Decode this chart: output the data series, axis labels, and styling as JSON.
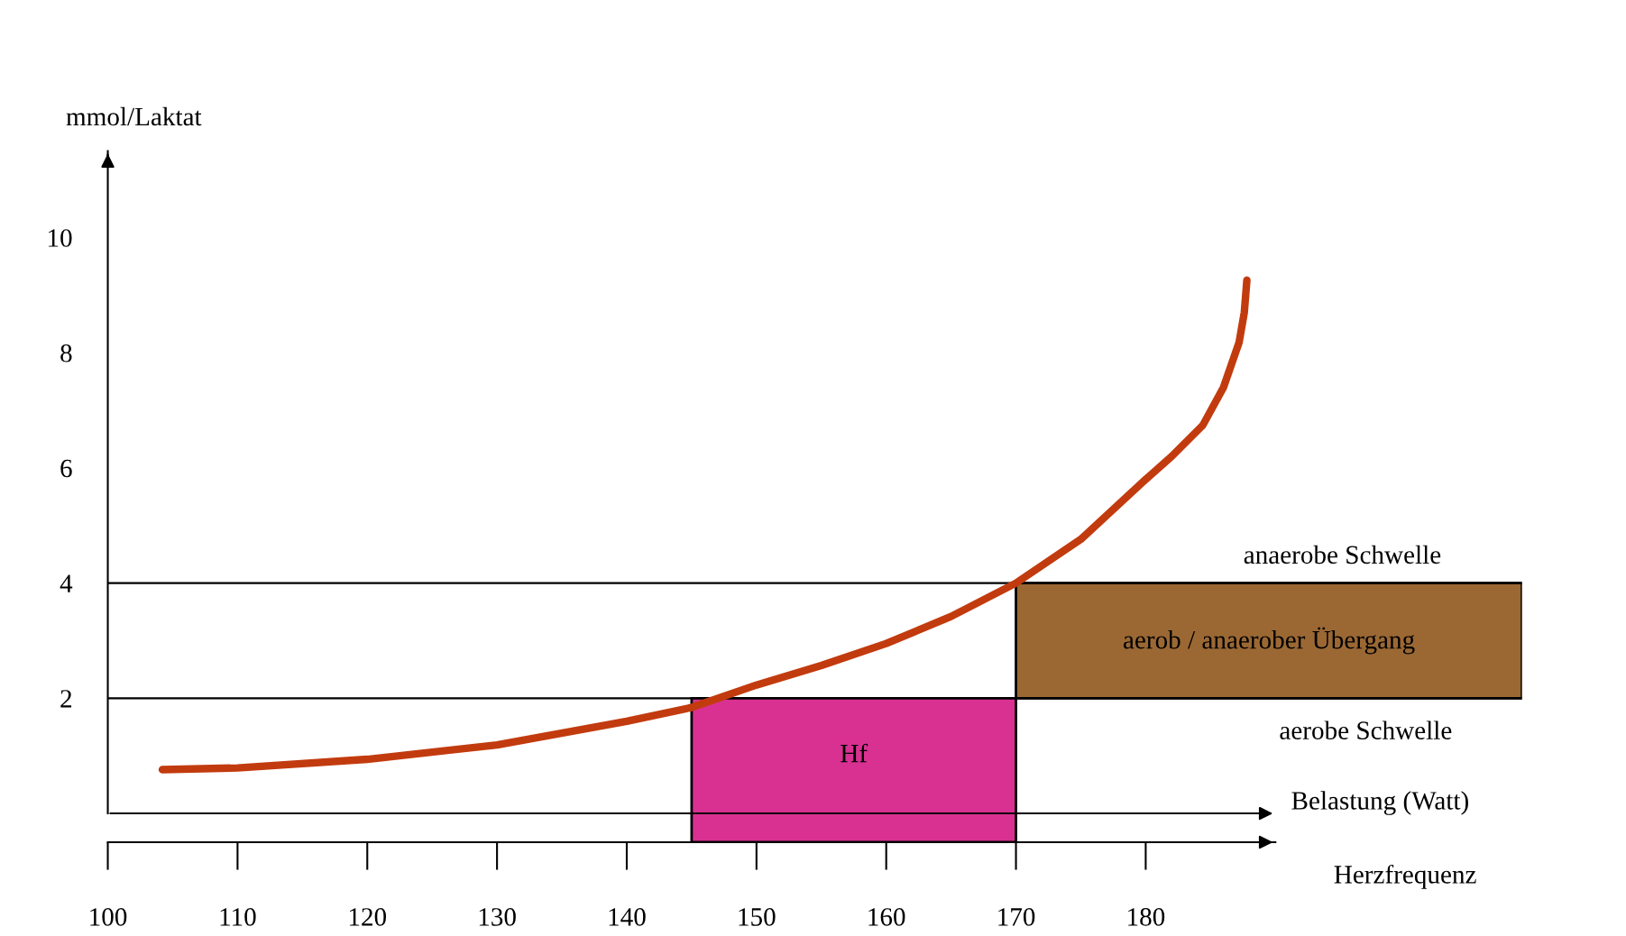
{
  "chart_data": {
    "type": "line",
    "xlabel": "Herzfrequenz",
    "x2label": "Belastung (Watt)",
    "ylabel": "mmol/Laktat",
    "xlim": [
      100,
      209
    ],
    "xticks": [
      100,
      110,
      120,
      130,
      140,
      150,
      160,
      170,
      180
    ],
    "ylim": [
      -0.5,
      11.5
    ],
    "yticks": [
      2,
      4,
      6,
      8,
      10
    ],
    "series": [
      {
        "color": "#c23b0e",
        "x": [
          104.2,
          110,
          120,
          130,
          140,
          145,
          150,
          155,
          160,
          165,
          170,
          175,
          180,
          182,
          184.4,
          186,
          187.2,
          187.6,
          187.8
        ],
        "values": [
          0.76,
          0.79,
          0.94,
          1.19,
          1.6,
          1.84,
          2.23,
          2.57,
          2.95,
          3.42,
          4.0,
          4.76,
          5.8,
          6.2,
          6.74,
          7.4,
          8.18,
          8.7,
          9.26
        ]
      }
    ],
    "ref_lines": [
      {
        "axis": "y",
        "value": 4,
        "label": "anaerobe Schwelle",
        "color": "#000000"
      },
      {
        "axis": "y",
        "value": 2,
        "label": "aerobe Schwelle",
        "color": "#000000"
      }
    ],
    "bands": [
      {
        "axis": "x",
        "from": 145,
        "to": 170,
        "label": "Hf",
        "color": "#d93192"
      },
      {
        "axis": "y",
        "from": 2,
        "to": 4,
        "label": "aerob / anaerober Übergang",
        "color": "#9b6834"
      }
    ],
    "grid": false,
    "legend": false,
    "marker": "none",
    "line_style": "solid"
  }
}
